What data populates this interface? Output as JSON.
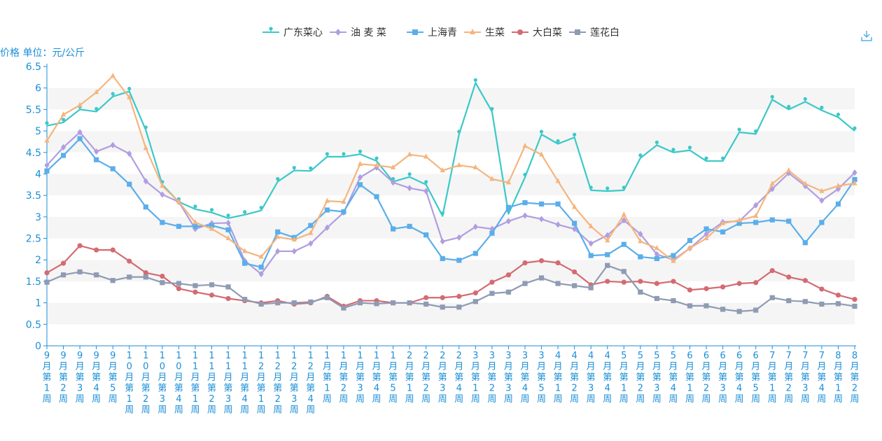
{
  "chart_data": {
    "type": "line",
    "ylabel": "价格 单位：元/公斤",
    "ylim": [
      0,
      6.5
    ],
    "yticks": [
      "0",
      "0.5",
      "1",
      "1.5",
      "2",
      "2.5",
      "3",
      "3.5",
      "4",
      "4.5",
      "5",
      "5.5",
      "6",
      "6.5"
    ],
    "grid": "horizontal bands",
    "legend_position": "top-center",
    "categories": [
      "9月第1周",
      "9月第2周",
      "9月第3周",
      "9月第4周",
      "9月第5周",
      "10月第1周",
      "10月第2周",
      "10月第3周",
      "10月第4周",
      "11月第1周",
      "11月第2周",
      "11月第3周",
      "11月第4周",
      "12月第1周",
      "12月第2周",
      "12月第3周",
      "12月第4周",
      "1月第1周",
      "1月第2周",
      "1月第3周",
      "1月第4周",
      "1月第5周",
      "2月第1周",
      "2月第2周",
      "2月第3周",
      "2月第4周",
      "3月第1周",
      "3月第2周",
      "3月第3周",
      "3月第4周",
      "3月第5周",
      "4月第1周",
      "4月第2周",
      "4月第3周",
      "4月第4周",
      "5月第1周",
      "5月第2周",
      "5月第3周",
      "5月第4周",
      "6月第1周",
      "6月第2周",
      "6月第3周",
      "6月第4周",
      "6月第5周",
      "7月第1周",
      "7月第2周",
      "7月第3周",
      "7月第4周",
      "8月第1周",
      "8月第2周"
    ],
    "series": [
      {
        "name": "广东菜心",
        "color": "#3cc8c8",
        "marker": "pin",
        "values": [
          5.12,
          5.2,
          5.5,
          5.45,
          5.8,
          5.92,
          5.02,
          3.75,
          3.35,
          3.18,
          3.1,
          2.97,
          3.05,
          3.15,
          3.82,
          4.08,
          4.07,
          4.4,
          4.4,
          4.46,
          4.3,
          3.82,
          3.93,
          3.75,
          3.02,
          4.92,
          6.12,
          5.45,
          3.07,
          3.92,
          4.92,
          4.7,
          4.85,
          3.62,
          3.6,
          3.62,
          4.37,
          4.67,
          4.5,
          4.55,
          4.3,
          4.3,
          4.97,
          4.93,
          5.73,
          5.5,
          5.68,
          5.48,
          5.32,
          5.0
        ]
      },
      {
        "name": "油 麦 菜",
        "color": "#b09ee0",
        "marker": "diamond",
        "values": [
          4.2,
          4.62,
          4.97,
          4.52,
          4.67,
          4.47,
          3.83,
          3.52,
          3.35,
          2.72,
          2.85,
          2.86,
          1.98,
          1.67,
          2.2,
          2.2,
          2.38,
          2.75,
          3.1,
          3.92,
          4.15,
          3.8,
          3.67,
          3.6,
          2.43,
          2.52,
          2.77,
          2.72,
          2.9,
          3.03,
          2.95,
          2.82,
          2.72,
          2.38,
          2.57,
          2.92,
          2.6,
          2.13,
          2.0,
          2.27,
          2.6,
          2.88,
          2.9,
          3.27,
          3.65,
          4.02,
          3.72,
          3.38,
          3.65,
          4.03
        ]
      },
      {
        "name": "上海青",
        "color": "#5aaeea",
        "marker": "square",
        "values": [
          4.07,
          4.43,
          4.82,
          4.33,
          4.12,
          3.76,
          3.23,
          2.87,
          2.78,
          2.78,
          2.8,
          2.7,
          1.92,
          1.83,
          2.65,
          2.52,
          2.8,
          3.16,
          3.12,
          3.75,
          3.47,
          2.72,
          2.78,
          2.58,
          2.03,
          1.99,
          2.15,
          2.62,
          3.22,
          3.33,
          3.3,
          3.3,
          2.85,
          2.1,
          2.12,
          2.36,
          2.07,
          2.03,
          2.1,
          2.45,
          2.72,
          2.65,
          2.85,
          2.87,
          2.93,
          2.9,
          2.4,
          2.87,
          3.3,
          3.87
        ]
      },
      {
        "name": "生菜",
        "color": "#f5b57e",
        "marker": "triangle",
        "values": [
          4.77,
          5.38,
          5.6,
          5.9,
          6.28,
          5.78,
          4.6,
          3.72,
          3.35,
          2.87,
          2.72,
          2.5,
          2.2,
          2.07,
          2.53,
          2.47,
          2.62,
          3.37,
          3.35,
          4.23,
          4.2,
          4.15,
          4.45,
          4.4,
          4.08,
          4.2,
          4.15,
          3.88,
          3.8,
          4.65,
          4.45,
          3.83,
          3.23,
          2.78,
          2.45,
          3.05,
          2.43,
          2.27,
          1.97,
          2.27,
          2.5,
          2.85,
          2.92,
          3.02,
          3.77,
          4.08,
          3.77,
          3.6,
          3.72,
          3.78
        ]
      },
      {
        "name": "大白菜",
        "color": "#d46a72",
        "marker": "circle",
        "values": [
          1.7,
          1.92,
          2.33,
          2.23,
          2.23,
          1.97,
          1.7,
          1.62,
          1.33,
          1.25,
          1.18,
          1.1,
          1.05,
          1.0,
          1.05,
          0.97,
          1.0,
          1.15,
          0.92,
          1.05,
          1.05,
          1.0,
          1.0,
          1.12,
          1.12,
          1.15,
          1.23,
          1.48,
          1.65,
          1.93,
          1.98,
          1.93,
          1.72,
          1.42,
          1.5,
          1.48,
          1.5,
          1.45,
          1.5,
          1.3,
          1.33,
          1.37,
          1.45,
          1.47,
          1.75,
          1.6,
          1.52,
          1.32,
          1.18,
          1.08
        ]
      },
      {
        "name": "莲花白",
        "color": "#8f9bb3",
        "marker": "square",
        "values": [
          1.48,
          1.65,
          1.72,
          1.65,
          1.52,
          1.6,
          1.6,
          1.47,
          1.45,
          1.4,
          1.42,
          1.37,
          1.08,
          0.97,
          1.0,
          1.0,
          1.02,
          1.12,
          0.88,
          1.0,
          0.98,
          1.0,
          1.0,
          0.97,
          0.9,
          0.9,
          1.03,
          1.22,
          1.25,
          1.45,
          1.58,
          1.45,
          1.4,
          1.35,
          1.87,
          1.73,
          1.25,
          1.1,
          1.05,
          0.93,
          0.93,
          0.85,
          0.8,
          0.83,
          1.12,
          1.05,
          1.03,
          0.97,
          0.98,
          0.92
        ]
      }
    ]
  },
  "toolbar": {
    "download_icon": "download-icon"
  }
}
